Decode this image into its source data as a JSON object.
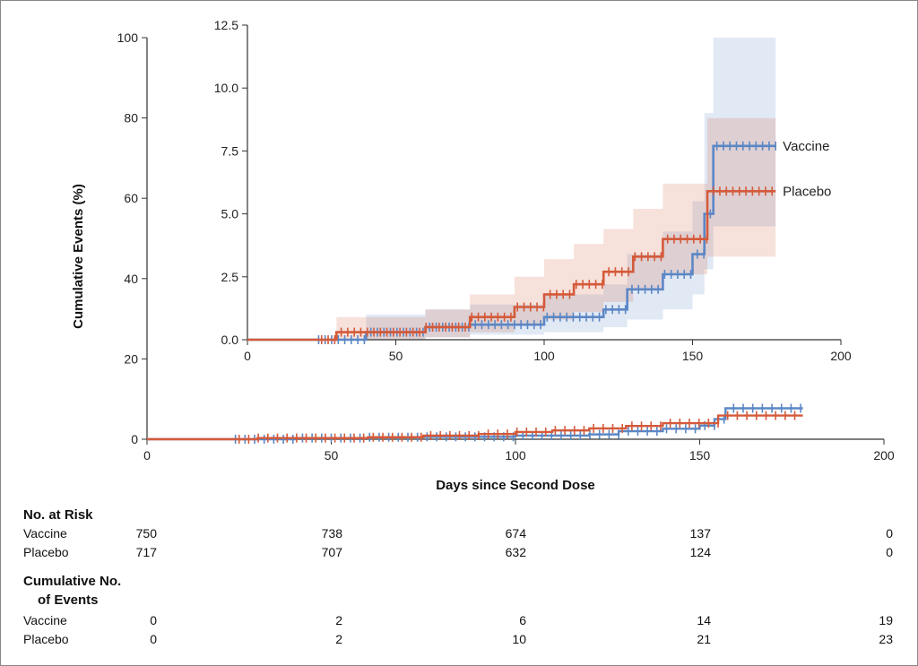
{
  "chart_data": [
    {
      "name": "main",
      "type": "line",
      "xlabel": "Days since Second Dose",
      "ylabel": "Cumulative Events (%)",
      "xlim": [
        0,
        200
      ],
      "ylim": [
        0,
        100
      ],
      "xticks": [
        "0",
        "50",
        "100",
        "150",
        "200"
      ],
      "yticks": [
        "0",
        "20",
        "40",
        "60",
        "80",
        "100"
      ],
      "series": [
        {
          "name": "Vaccine",
          "color": "#5b87c5",
          "x": [
            0,
            40,
            60,
            75,
            100,
            120,
            128,
            140,
            150,
            154,
            157,
            178
          ],
          "y": [
            0,
            0.3,
            0.5,
            0.6,
            0.9,
            1.2,
            2.0,
            2.6,
            3.4,
            5.0,
            7.7,
            7.7
          ]
        },
        {
          "name": "Placebo",
          "color": "#d45a3a",
          "x": [
            0,
            30,
            60,
            75,
            90,
            100,
            110,
            120,
            130,
            140,
            150,
            155,
            178
          ],
          "y": [
            0,
            0.3,
            0.5,
            0.9,
            1.3,
            1.8,
            2.2,
            2.7,
            3.3,
            4.0,
            4.0,
            5.9,
            5.9
          ]
        }
      ]
    },
    {
      "name": "inset",
      "type": "line",
      "xlim": [
        0,
        200
      ],
      "ylim": [
        0,
        12.5
      ],
      "xticks": [
        "0",
        "50",
        "100",
        "150",
        "200"
      ],
      "yticks": [
        "0.0",
        "2.5",
        "5.0",
        "7.5",
        "10.0",
        "12.5"
      ],
      "legend": [
        "Vaccine",
        "Placebo"
      ],
      "series": [
        {
          "name": "Vaccine",
          "color": "#5b87c5",
          "x": [
            0,
            40,
            60,
            75,
            100,
            120,
            128,
            140,
            150,
            154,
            157,
            178
          ],
          "y": [
            0,
            0.3,
            0.5,
            0.6,
            0.9,
            1.2,
            2.0,
            2.6,
            3.4,
            5.0,
            7.7,
            7.7
          ],
          "ci_low": [
            0,
            0,
            0.1,
            0.2,
            0.3,
            0.5,
            0.8,
            1.2,
            1.8,
            2.8,
            4.5,
            4.5
          ],
          "ci_high": [
            0,
            1.0,
            1.2,
            1.4,
            1.8,
            2.2,
            3.4,
            4.3,
            5.5,
            9.0,
            12.0,
            12.0
          ]
        },
        {
          "name": "Placebo",
          "color": "#d45a3a",
          "x": [
            0,
            30,
            60,
            75,
            90,
            100,
            110,
            120,
            130,
            140,
            150,
            155,
            178
          ],
          "y": [
            0,
            0.3,
            0.5,
            0.9,
            1.3,
            1.8,
            2.2,
            2.7,
            3.3,
            4.0,
            4.0,
            5.9,
            5.9
          ],
          "ci_low": [
            0,
            0,
            0.1,
            0.3,
            0.6,
            0.8,
            1.1,
            1.5,
            2.0,
            2.6,
            2.6,
            3.3,
            3.3
          ],
          "ci_high": [
            0,
            0.9,
            1.2,
            1.8,
            2.5,
            3.2,
            3.8,
            4.4,
            5.2,
            6.2,
            6.2,
            8.8,
            8.8
          ]
        }
      ]
    }
  ],
  "risk_table": {
    "at_risk_header": "No. at Risk",
    "events_header_line1": "Cumulative No.",
    "events_header_line2": "of Events",
    "groups": [
      "Vaccine",
      "Placebo"
    ],
    "at_risk": {
      "Vaccine": [
        "750",
        "738",
        "674",
        "137",
        "0"
      ],
      "Placebo": [
        "717",
        "707",
        "632",
        "124",
        "0"
      ]
    },
    "events": {
      "Vaccine": [
        "0",
        "2",
        "6",
        "14",
        "19"
      ],
      "Placebo": [
        "0",
        "2",
        "10",
        "21",
        "23"
      ]
    }
  }
}
